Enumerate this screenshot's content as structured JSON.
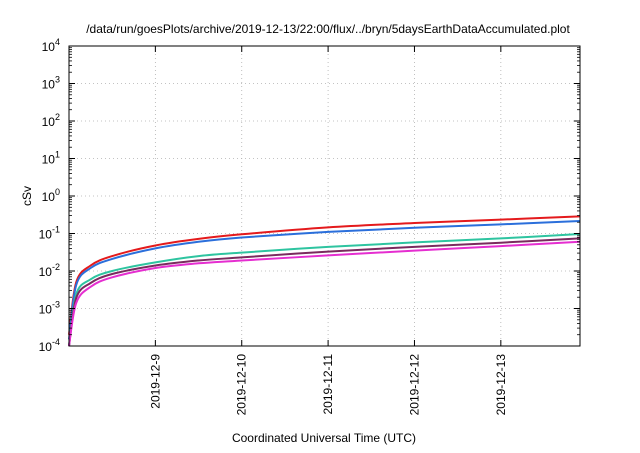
{
  "chart_data": {
    "type": "line",
    "title": "/data/run/goesPlots/archive/2019-12-13/22:00/flux/../bryn/5daysEarthDataAccumulated.plot",
    "xlabel": "Coordinated Universal Time (UTC)",
    "ylabel": "cSv",
    "yscale": "log",
    "ylim": [
      0.0001,
      10000
    ],
    "xlim": [
      "2019-12-08T00:00",
      "2019-12-13T22:00"
    ],
    "grid": true,
    "legend": "none",
    "x_ticks": [
      "2019-12-9",
      "2019-12-10",
      "2019-12-11",
      "2019-12-12",
      "2019-12-13"
    ],
    "y_ticks": [
      {
        "base": "10",
        "exp": "-4"
      },
      {
        "base": "10",
        "exp": "-3"
      },
      {
        "base": "10",
        "exp": "-2"
      },
      {
        "base": "10",
        "exp": "-1"
      },
      {
        "base": "10",
        "exp": "0"
      },
      {
        "base": "10",
        "exp": "1"
      },
      {
        "base": "10",
        "exp": "2"
      },
      {
        "base": "10",
        "exp": "3"
      },
      {
        "base": "10",
        "exp": "4"
      }
    ],
    "x": [
      "2019-12-08T00:00",
      "2019-12-08T02:00",
      "2019-12-08T06:00",
      "2019-12-08T12:00",
      "2019-12-09T00:00",
      "2019-12-09T12:00",
      "2019-12-10T00:00",
      "2019-12-11T00:00",
      "2019-12-12T00:00",
      "2019-12-13T00:00",
      "2019-12-13T22:00"
    ],
    "series": [
      {
        "color": "#e41a1c",
        "values": [
          0.0002,
          0.005,
          0.014,
          0.025,
          0.048,
          0.072,
          0.095,
          0.145,
          0.19,
          0.235,
          0.285
        ]
      },
      {
        "color": "#2b6fdb",
        "values": [
          0.00015,
          0.0042,
          0.012,
          0.021,
          0.04,
          0.06,
          0.078,
          0.11,
          0.142,
          0.175,
          0.215
        ]
      },
      {
        "color": "#2ec4a0",
        "values": [
          0.0001,
          0.0024,
          0.006,
          0.01,
          0.017,
          0.025,
          0.031,
          0.044,
          0.058,
          0.074,
          0.097
        ]
      },
      {
        "color": "#7a2a5e",
        "values": [
          0.0001,
          0.0019,
          0.0048,
          0.0083,
          0.014,
          0.019,
          0.023,
          0.033,
          0.044,
          0.057,
          0.074
        ]
      },
      {
        "color": "#e52ed0",
        "values": [
          0.0001,
          0.0014,
          0.0038,
          0.0068,
          0.012,
          0.016,
          0.019,
          0.026,
          0.035,
          0.046,
          0.06
        ]
      }
    ]
  }
}
